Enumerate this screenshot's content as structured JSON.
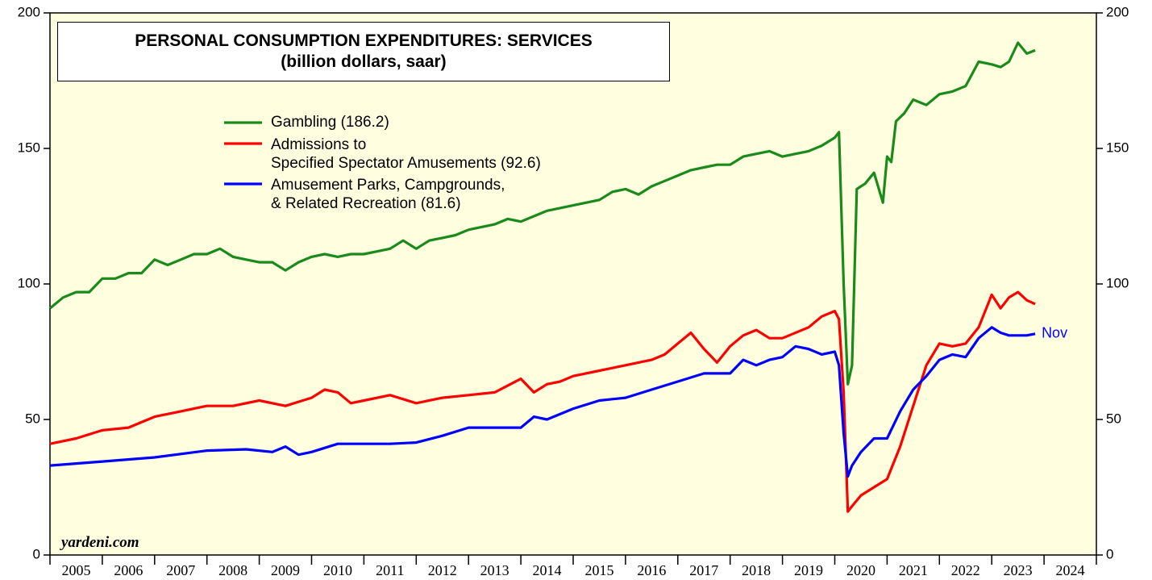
{
  "chart_data": {
    "type": "line",
    "title": "PERSONAL CONSUMPTION EXPENDITURES: SERVICES",
    "subtitle": "(billion dollars, saar)",
    "source": "yardeni.com",
    "annotation": "Nov",
    "xlim": [
      2005,
      2025
    ],
    "xticks": [
      2005,
      2006,
      2007,
      2008,
      2009,
      2010,
      2011,
      2012,
      2013,
      2014,
      2015,
      2016,
      2017,
      2018,
      2019,
      2020,
      2021,
      2022,
      2023,
      2024,
      2025
    ],
    "x_labels": [
      "2005",
      "2006",
      "2007",
      "2008",
      "2009",
      "2010",
      "2011",
      "2012",
      "2013",
      "2014",
      "2015",
      "2016",
      "2017",
      "2018",
      "2019",
      "2020",
      "2021",
      "2022",
      "2023",
      "2024"
    ],
    "ylim": [
      0,
      200
    ],
    "yticks": [
      0,
      50,
      100,
      150,
      200
    ],
    "background": "#ffffe0",
    "series": [
      {
        "name": "Gambling (186.2)",
        "color": "#1a8a1a",
        "x": [
          2005.0,
          2005.25,
          2005.5,
          2005.75,
          2006.0,
          2006.25,
          2006.5,
          2006.75,
          2007.0,
          2007.25,
          2007.5,
          2007.75,
          2008.0,
          2008.25,
          2008.5,
          2008.75,
          2009.0,
          2009.25,
          2009.5,
          2009.75,
          2010.0,
          2010.25,
          2010.5,
          2010.75,
          2011.0,
          2011.25,
          2011.5,
          2011.75,
          2012.0,
          2012.25,
          2012.5,
          2012.75,
          2013.0,
          2013.25,
          2013.5,
          2013.75,
          2014.0,
          2014.25,
          2014.5,
          2014.75,
          2015.0,
          2015.25,
          2015.5,
          2015.75,
          2016.0,
          2016.25,
          2016.5,
          2016.75,
          2017.0,
          2017.25,
          2017.5,
          2017.75,
          2018.0,
          2018.25,
          2018.5,
          2018.75,
          2019.0,
          2019.25,
          2019.5,
          2019.75,
          2020.0,
          2020.08,
          2020.17,
          2020.25,
          2020.33,
          2020.42,
          2020.58,
          2020.75,
          2020.92,
          2021.0,
          2021.08,
          2021.17,
          2021.33,
          2021.5,
          2021.75,
          2022.0,
          2022.25,
          2022.5,
          2022.75,
          2023.0,
          2023.17,
          2023.33,
          2023.5,
          2023.67,
          2023.83
        ],
        "values": [
          91,
          95,
          97,
          97,
          102,
          102,
          104,
          104,
          109,
          107,
          109,
          111,
          111,
          113,
          110,
          109,
          108,
          108,
          105,
          108,
          110,
          111,
          110,
          111,
          111,
          112,
          113,
          116,
          113,
          116,
          117,
          118,
          120,
          121,
          122,
          124,
          123,
          125,
          127,
          128,
          129,
          130,
          131,
          134,
          135,
          133,
          136,
          138,
          140,
          142,
          143,
          144,
          144,
          147,
          148,
          149,
          147,
          148,
          149,
          151,
          154,
          156,
          100,
          63,
          70,
          135,
          137,
          141,
          130,
          147,
          145,
          160,
          163,
          168,
          166,
          170,
          171,
          173,
          182,
          181,
          180,
          182,
          189,
          185,
          186.2
        ]
      },
      {
        "name": "Admissions to\nSpecified Spectator Amusements (92.6)",
        "color": "#ff0000",
        "x": [
          2005.0,
          2005.5,
          2006.0,
          2006.5,
          2007.0,
          2007.5,
          2008.0,
          2008.5,
          2009.0,
          2009.5,
          2010.0,
          2010.25,
          2010.5,
          2010.75,
          2011.0,
          2011.5,
          2012.0,
          2012.5,
          2013.0,
          2013.5,
          2014.0,
          2014.25,
          2014.5,
          2014.75,
          2015.0,
          2015.5,
          2016.0,
          2016.5,
          2016.75,
          2017.0,
          2017.25,
          2017.5,
          2017.75,
          2018.0,
          2018.25,
          2018.5,
          2018.75,
          2019.0,
          2019.5,
          2019.75,
          2020.0,
          2020.08,
          2020.17,
          2020.25,
          2020.33,
          2020.5,
          2020.75,
          2021.0,
          2021.25,
          2021.5,
          2021.75,
          2022.0,
          2022.25,
          2022.5,
          2022.75,
          2023.0,
          2023.17,
          2023.33,
          2023.5,
          2023.67,
          2023.83
        ],
        "values": [
          41,
          43,
          46,
          47,
          51,
          53,
          55,
          55,
          57,
          55,
          58,
          61,
          60,
          56,
          57,
          59,
          56,
          58,
          59,
          60,
          65,
          60,
          63,
          64,
          66,
          68,
          70,
          72,
          74,
          78,
          82,
          76,
          71,
          77,
          81,
          83,
          80,
          80,
          84,
          88,
          90,
          87,
          60,
          16,
          18,
          22,
          25,
          28,
          40,
          55,
          70,
          78,
          77,
          78,
          84,
          96,
          91,
          95,
          97,
          94,
          92.6
        ]
      },
      {
        "name": "Amusement Parks, Campgrounds,\n& Related Recreation (81.6)",
        "color": "#0000ff",
        "x": [
          2005.0,
          2006.0,
          2007.0,
          2008.0,
          2008.75,
          2009.25,
          2009.5,
          2009.75,
          2010.0,
          2010.5,
          2011.0,
          2011.5,
          2012.0,
          2012.5,
          2013.0,
          2013.5,
          2014.0,
          2014.25,
          2014.5,
          2015.0,
          2015.5,
          2016.0,
          2016.5,
          2017.0,
          2017.5,
          2018.0,
          2018.25,
          2018.5,
          2018.75,
          2019.0,
          2019.25,
          2019.5,
          2019.75,
          2020.0,
          2020.08,
          2020.17,
          2020.25,
          2020.33,
          2020.5,
          2020.75,
          2021.0,
          2021.25,
          2021.5,
          2021.75,
          2022.0,
          2022.25,
          2022.5,
          2022.75,
          2023.0,
          2023.17,
          2023.33,
          2023.5,
          2023.67,
          2023.83
        ],
        "values": [
          33,
          34.5,
          36,
          38.5,
          39,
          38,
          40,
          37,
          38,
          41,
          41,
          41,
          41.5,
          44,
          47,
          47,
          47,
          51,
          50,
          54,
          57,
          58,
          61,
          64,
          67,
          67,
          72,
          70,
          72,
          73,
          77,
          76,
          74,
          75,
          70,
          45,
          29,
          33,
          38,
          43,
          43,
          53,
          61,
          66,
          72,
          74,
          73,
          80,
          84,
          82,
          81,
          81,
          81,
          81.6
        ]
      }
    ]
  }
}
